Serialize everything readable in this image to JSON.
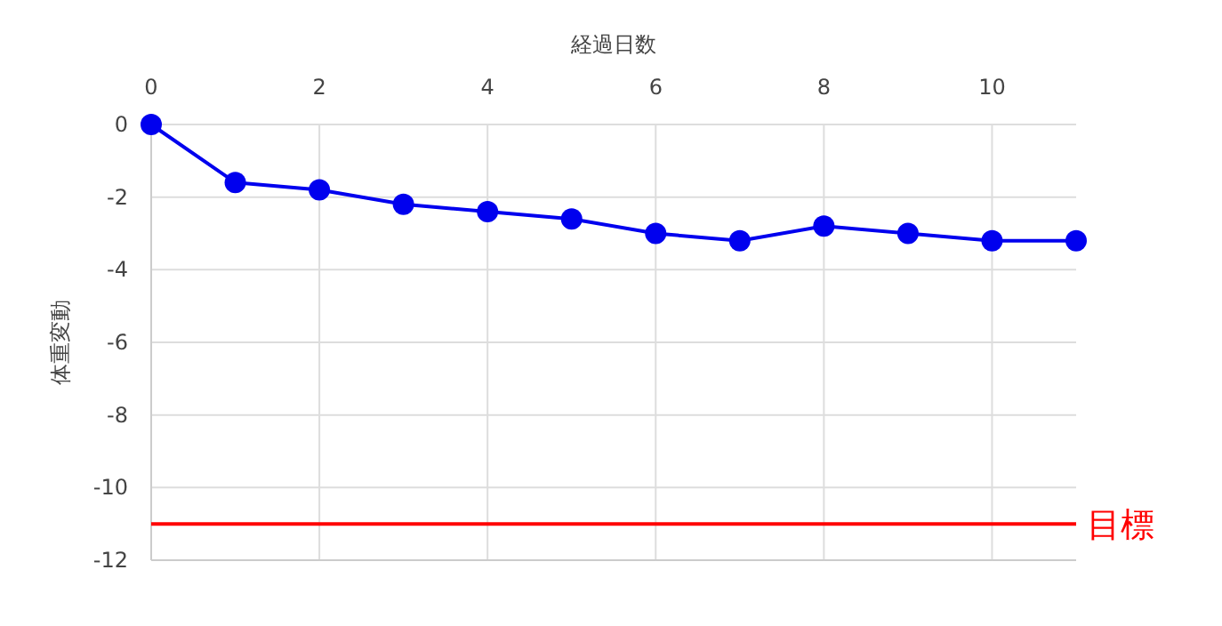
{
  "chart_data": {
    "type": "line",
    "xlabel": "経過日数",
    "ylabel": "体重変動",
    "x": [
      0,
      1,
      2,
      3,
      4,
      5,
      6,
      7,
      8,
      9,
      10,
      11
    ],
    "series": [
      {
        "color": "#0000ee",
        "values": [
          0,
          -1.6,
          -1.8,
          -2.2,
          -2.4,
          -2.6,
          -3.0,
          -3.2,
          -2.8,
          -3.0,
          -3.2,
          -3.2
        ]
      }
    ],
    "xlim": [
      0,
      11
    ],
    "xticks": [
      0,
      2,
      4,
      6,
      8,
      10
    ],
    "ylim": [
      -12,
      0
    ],
    "yticks": [
      -12,
      -10,
      -8,
      -6,
      -4,
      -2,
      0
    ],
    "grid": true,
    "marker": "circle",
    "line_style": "solid",
    "ref_lines": [
      {
        "axis": "y",
        "value": -11,
        "label": "目標",
        "color": "#ff0000"
      }
    ]
  }
}
